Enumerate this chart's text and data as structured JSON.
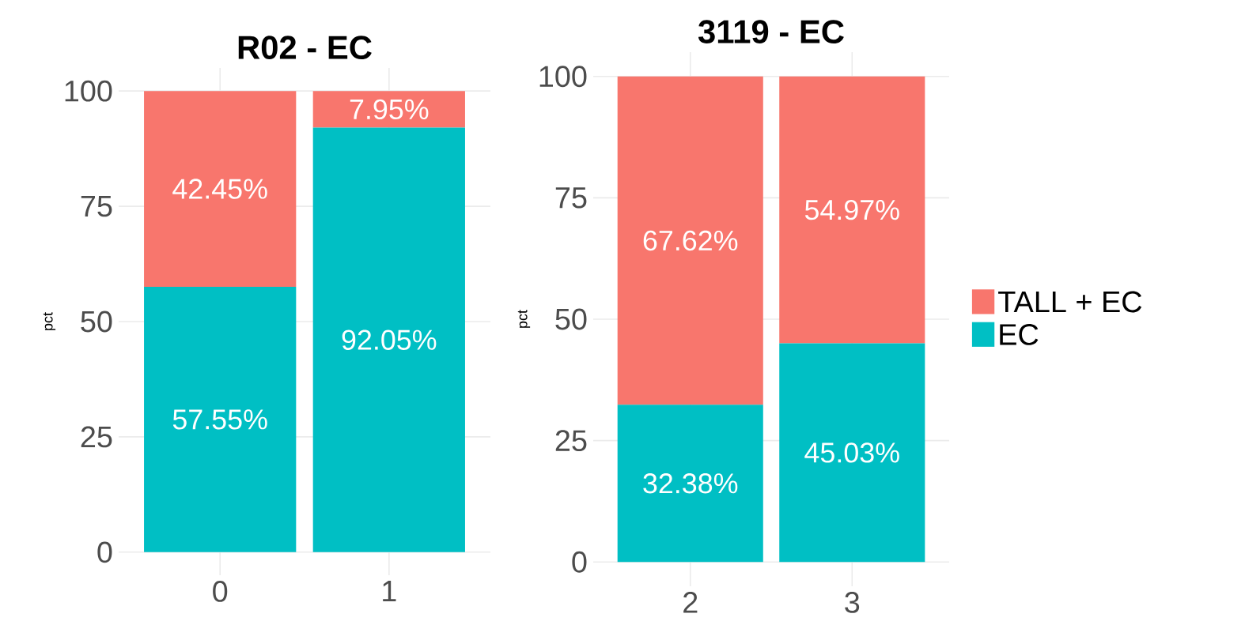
{
  "chart_data": [
    {
      "type": "bar",
      "title": "R02 - EC",
      "ylabel": "pct",
      "categories": [
        "0",
        "1"
      ],
      "stacked": true,
      "ylim": [
        -5,
        105
      ],
      "yticks": [
        0,
        25,
        50,
        75,
        100
      ],
      "grid": true,
      "series": [
        {
          "color": "#00bfc4",
          "values": [
            57.55,
            92.05
          ],
          "value_labels": [
            "57.55%",
            "92.05%"
          ]
        },
        {
          "color": "#f8766d",
          "values": [
            42.45,
            7.95
          ],
          "value_labels": [
            "42.45%",
            "7.95%"
          ]
        }
      ]
    },
    {
      "type": "bar",
      "title": "3119 - EC",
      "ylabel": "pct",
      "categories": [
        "2",
        "3"
      ],
      "stacked": true,
      "ylim": [
        -5,
        105
      ],
      "yticks": [
        0,
        25,
        50,
        75,
        100
      ],
      "grid": true,
      "legend": "right",
      "series": [
        {
          "name": "EC",
          "color": "#00bfc4",
          "values": [
            32.38,
            45.03
          ],
          "value_labels": [
            "32.38%",
            "45.03%"
          ]
        },
        {
          "name": "TALL + EC",
          "color": "#f8766d",
          "values": [
            67.62,
            54.97
          ],
          "value_labels": [
            "67.62%",
            "54.97%"
          ]
        }
      ]
    }
  ]
}
